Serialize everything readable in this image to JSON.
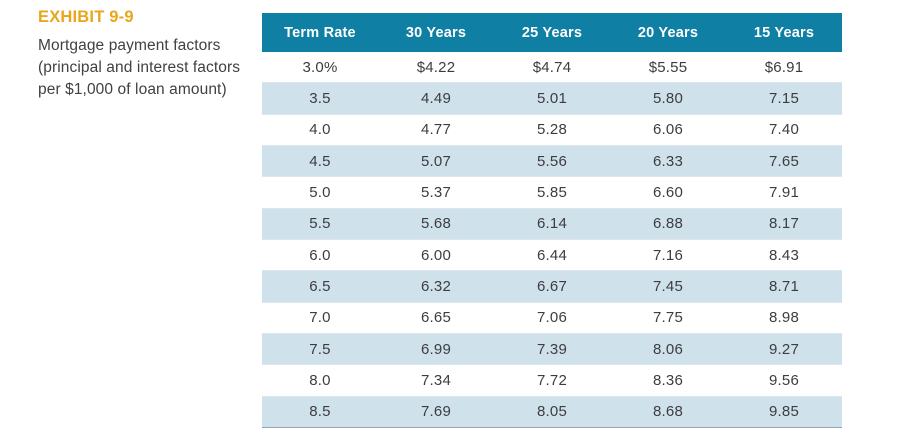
{
  "exhibit": {
    "label": "EXHIBIT 9-9",
    "caption": "Mortgage payment factors (principal and interest factors per $1,000 of loan amount)"
  },
  "table": {
    "headers": [
      "Term Rate",
      "30 Years",
      "25 Years",
      "20 Years",
      "15 Years"
    ],
    "rows": [
      [
        "3.0%",
        "$4.22",
        "$4.74",
        "$5.55",
        "$6.91"
      ],
      [
        "3.5",
        "4.49",
        "5.01",
        "5.80",
        "7.15"
      ],
      [
        "4.0",
        "4.77",
        "5.28",
        "6.06",
        "7.40"
      ],
      [
        "4.5",
        "5.07",
        "5.56",
        "6.33",
        "7.65"
      ],
      [
        "5.0",
        "5.37",
        "5.85",
        "6.60",
        "7.91"
      ],
      [
        "5.5",
        "5.68",
        "6.14",
        "6.88",
        "8.17"
      ],
      [
        "6.0",
        "6.00",
        "6.44",
        "7.16",
        "8.43"
      ],
      [
        "6.5",
        "6.32",
        "6.67",
        "7.45",
        "8.71"
      ],
      [
        "7.0",
        "6.65",
        "7.06",
        "7.75",
        "8.98"
      ],
      [
        "7.5",
        "6.99",
        "7.39",
        "8.06",
        "9.27"
      ],
      [
        "8.0",
        "7.34",
        "7.72",
        "8.36",
        "9.56"
      ],
      [
        "8.5",
        "7.69",
        "8.05",
        "8.68",
        "9.85"
      ]
    ]
  },
  "chart_data": {
    "type": "table",
    "title": "Mortgage payment factors (principal and interest factors per $1,000 of loan amount)",
    "columns": [
      "Term Rate",
      "30 Years",
      "25 Years",
      "20 Years",
      "15 Years"
    ],
    "term_rates_percent": [
      3.0,
      3.5,
      4.0,
      4.5,
      5.0,
      5.5,
      6.0,
      6.5,
      7.0,
      7.5,
      8.0,
      8.5
    ],
    "series": [
      {
        "name": "30 Years",
        "values": [
          4.22,
          4.49,
          4.77,
          5.07,
          5.37,
          5.68,
          6.0,
          6.32,
          6.65,
          6.99,
          7.34,
          7.69
        ]
      },
      {
        "name": "25 Years",
        "values": [
          4.74,
          5.01,
          5.28,
          5.56,
          5.85,
          6.14,
          6.44,
          6.67,
          7.06,
          7.39,
          7.72,
          8.05
        ]
      },
      {
        "name": "20 Years",
        "values": [
          5.55,
          5.8,
          6.06,
          6.33,
          6.6,
          6.88,
          7.16,
          7.45,
          7.75,
          8.06,
          8.36,
          8.68
        ]
      },
      {
        "name": "15 Years",
        "values": [
          6.91,
          7.15,
          7.4,
          7.65,
          7.91,
          8.17,
          8.43,
          8.71,
          8.98,
          9.27,
          9.56,
          9.85
        ]
      }
    ]
  },
  "colors": {
    "header_bg": "#0f7fa4",
    "stripe_bg": "#cfe1eb",
    "label_gold": "#e9a61b",
    "text_dark": "#3d3d40"
  }
}
